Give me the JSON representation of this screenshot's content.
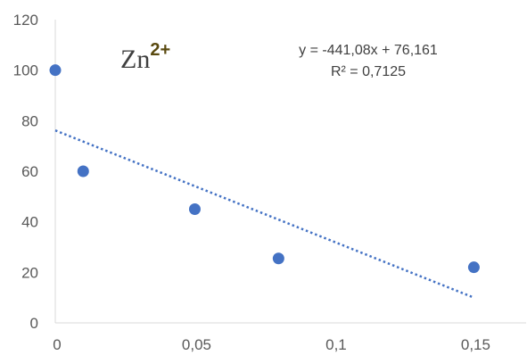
{
  "chart_data": {
    "type": "scatter",
    "title": "",
    "xlabel": "",
    "ylabel": "",
    "xlim": [
      0,
      0.17
    ],
    "ylim": [
      0,
      120
    ],
    "grid": false,
    "x_ticks": [
      0,
      0.05,
      0.1,
      0.15
    ],
    "x_tick_labels": [
      "0",
      "0,05",
      "0,1",
      "0,15"
    ],
    "y_ticks": [
      0,
      20,
      40,
      60,
      80,
      100,
      120
    ],
    "y_tick_labels": [
      "0",
      "20",
      "40",
      "60",
      "80",
      "100",
      "120"
    ],
    "series": [
      {
        "marker_color": "#4472C4",
        "points": [
          {
            "x": 0,
            "y": 100
          },
          {
            "x": 0.01,
            "y": 60
          },
          {
            "x": 0.05,
            "y": 45
          },
          {
            "x": 0.08,
            "y": 25.5
          },
          {
            "x": 0.15,
            "y": 22
          }
        ]
      }
    ],
    "trendline": {
      "type": "linear",
      "style": "dotted",
      "color": "#4472C4",
      "slope": -441.08,
      "intercept": 76.161,
      "x_range": [
        0,
        0.15
      ]
    },
    "annotations": {
      "species_base": "Zn",
      "species_sup": "2+",
      "equation": "y = -441,08x + 76,161",
      "r_squared": "R² = 0,7125"
    }
  }
}
